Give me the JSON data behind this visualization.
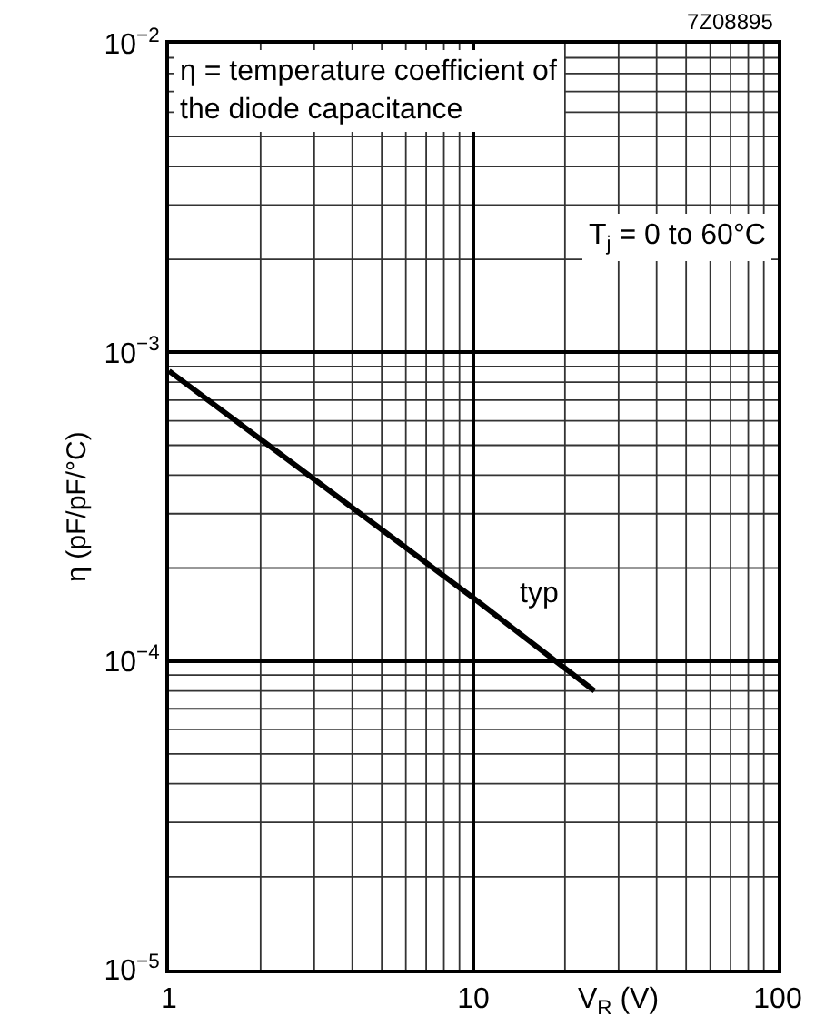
{
  "chart_data": {
    "type": "line",
    "title": "η = temperature coefficient of the diode capacitance",
    "xlabel": "V$_{R}$ (V)",
    "ylabel": "η (pF/pF/°C)",
    "x": [
      1,
      10,
      25
    ],
    "series": [
      {
        "color": "#000000",
        "values": [
          0.00087,
          0.00016,
          8e-05
        ]
      }
    ],
    "log": "xy",
    "grid": true,
    "marker": "none",
    "line_style": "solid",
    "xlim": [
      1,
      100
    ],
    "xticks": [
      1,
      10,
      100
    ],
    "ylim": [
      1e-05,
      0.01
    ],
    "yticks": [
      {
        "value": 1e-05,
        "label": "10$^{−5}$"
      },
      {
        "value": 0.0001,
        "label": "10$^{−4}$"
      },
      {
        "value": 0.001,
        "label": "10$^{−3}$"
      },
      {
        "value": 0.01,
        "label": "10$^{−2}$"
      }
    ],
    "annotations": [
      "7Z08895",
      "T$_{j}$ = 0 to 60°C",
      "typ"
    ]
  }
}
